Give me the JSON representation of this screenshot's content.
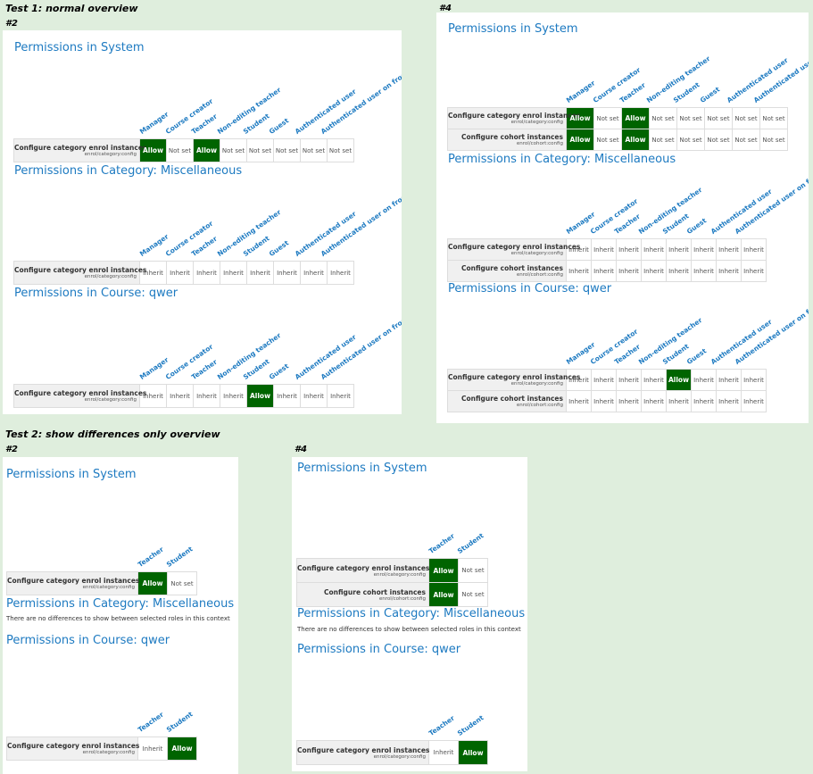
{
  "labels": {
    "test1": "Test 1: normal overview",
    "test2": "Test 2: show differences only overview",
    "hash2": "#2",
    "hash4": "#4"
  },
  "roles_all": [
    "Manager",
    "Course creator",
    "Teacher",
    "Non-editing teacher",
    "Student",
    "Guest",
    "Authenticated user",
    "Authenticated user on frontpage"
  ],
  "roles_diff": [
    "Teacher",
    "Student"
  ],
  "capabilities": {
    "enrol_cat": {
      "name": "Configure category enrol instances",
      "id": "enrol/category:config"
    },
    "enrol_cohort": {
      "name": "Configure cohort instances",
      "id": "enrol/cohort:config"
    }
  },
  "headings": {
    "system": "Permissions in System",
    "category": "Permissions in Category: Miscellaneous",
    "course": "Permissions in Course: qwer"
  },
  "no_differences": "There are no differences to show between selected roles in this context",
  "sections": {
    "t1_2_system": [
      [
        "Allow",
        "Not set",
        "Allow",
        "Not set",
        "Not set",
        "Not set",
        "Not set",
        "Not set"
      ]
    ],
    "t1_2_category": [
      [
        "Inherit",
        "Inherit",
        "Inherit",
        "Inherit",
        "Inherit",
        "Inherit",
        "Inherit",
        "Inherit"
      ]
    ],
    "t1_2_course": [
      [
        "Inherit",
        "Inherit",
        "Inherit",
        "Inherit",
        "Allow",
        "Inherit",
        "Inherit",
        "Inherit"
      ]
    ],
    "t1_4_system": [
      [
        "Allow",
        "Not set",
        "Allow",
        "Not set",
        "Not set",
        "Not set",
        "Not set",
        "Not set"
      ],
      [
        "Allow",
        "Not set",
        "Allow",
        "Not set",
        "Not set",
        "Not set",
        "Not set",
        "Not set"
      ]
    ],
    "t1_4_category": [
      [
        "Inherit",
        "Inherit",
        "Inherit",
        "Inherit",
        "Inherit",
        "Inherit",
        "Inherit",
        "Inherit"
      ],
      [
        "Inherit",
        "Inherit",
        "Inherit",
        "Inherit",
        "Inherit",
        "Inherit",
        "Inherit",
        "Inherit"
      ]
    ],
    "t1_4_course": [
      [
        "Inherit",
        "Inherit",
        "Inherit",
        "Inherit",
        "Allow",
        "Inherit",
        "Inherit",
        "Inherit"
      ],
      [
        "Inherit",
        "Inherit",
        "Inherit",
        "Inherit",
        "Inherit",
        "Inherit",
        "Inherit",
        "Inherit"
      ]
    ],
    "t2_2_system": [
      [
        "Allow",
        "Not set"
      ]
    ],
    "t2_2_course": [
      [
        "Inherit",
        "Allow"
      ]
    ],
    "t2_4_system": [
      [
        "Allow",
        "Not set"
      ],
      [
        "Allow",
        "Not set"
      ]
    ],
    "t2_4_course": [
      [
        "Inherit",
        "Allow"
      ]
    ]
  }
}
